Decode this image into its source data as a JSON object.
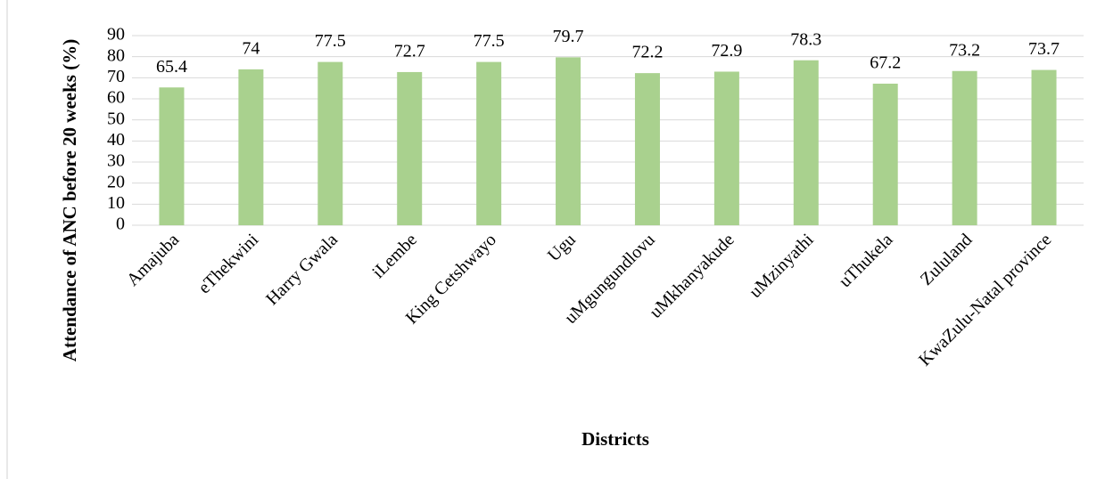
{
  "chart_data": {
    "type": "bar",
    "categories": [
      "Amajuba",
      "eThekwini",
      "Harry Gwala",
      "iLembe",
      "King Cetshwayo",
      "Ugu",
      "uMgungundlovu",
      "uMkhanyakude",
      "uMzinyathi",
      "uThukela",
      "Zululand",
      "KwaZulu-Natal province"
    ],
    "values": [
      65.4,
      74,
      77.5,
      72.7,
      77.5,
      79.7,
      72.2,
      72.9,
      78.3,
      67.2,
      73.2,
      73.7
    ],
    "color": "#a9d18e",
    "x_label": "Districts",
    "y_label": "Attendance of ANC before 20 weeks (%)",
    "ylim": [
      0,
      90
    ],
    "yticks": [
      0,
      10,
      20,
      30,
      40,
      50,
      60,
      70,
      80,
      90
    ],
    "grid": true
  }
}
